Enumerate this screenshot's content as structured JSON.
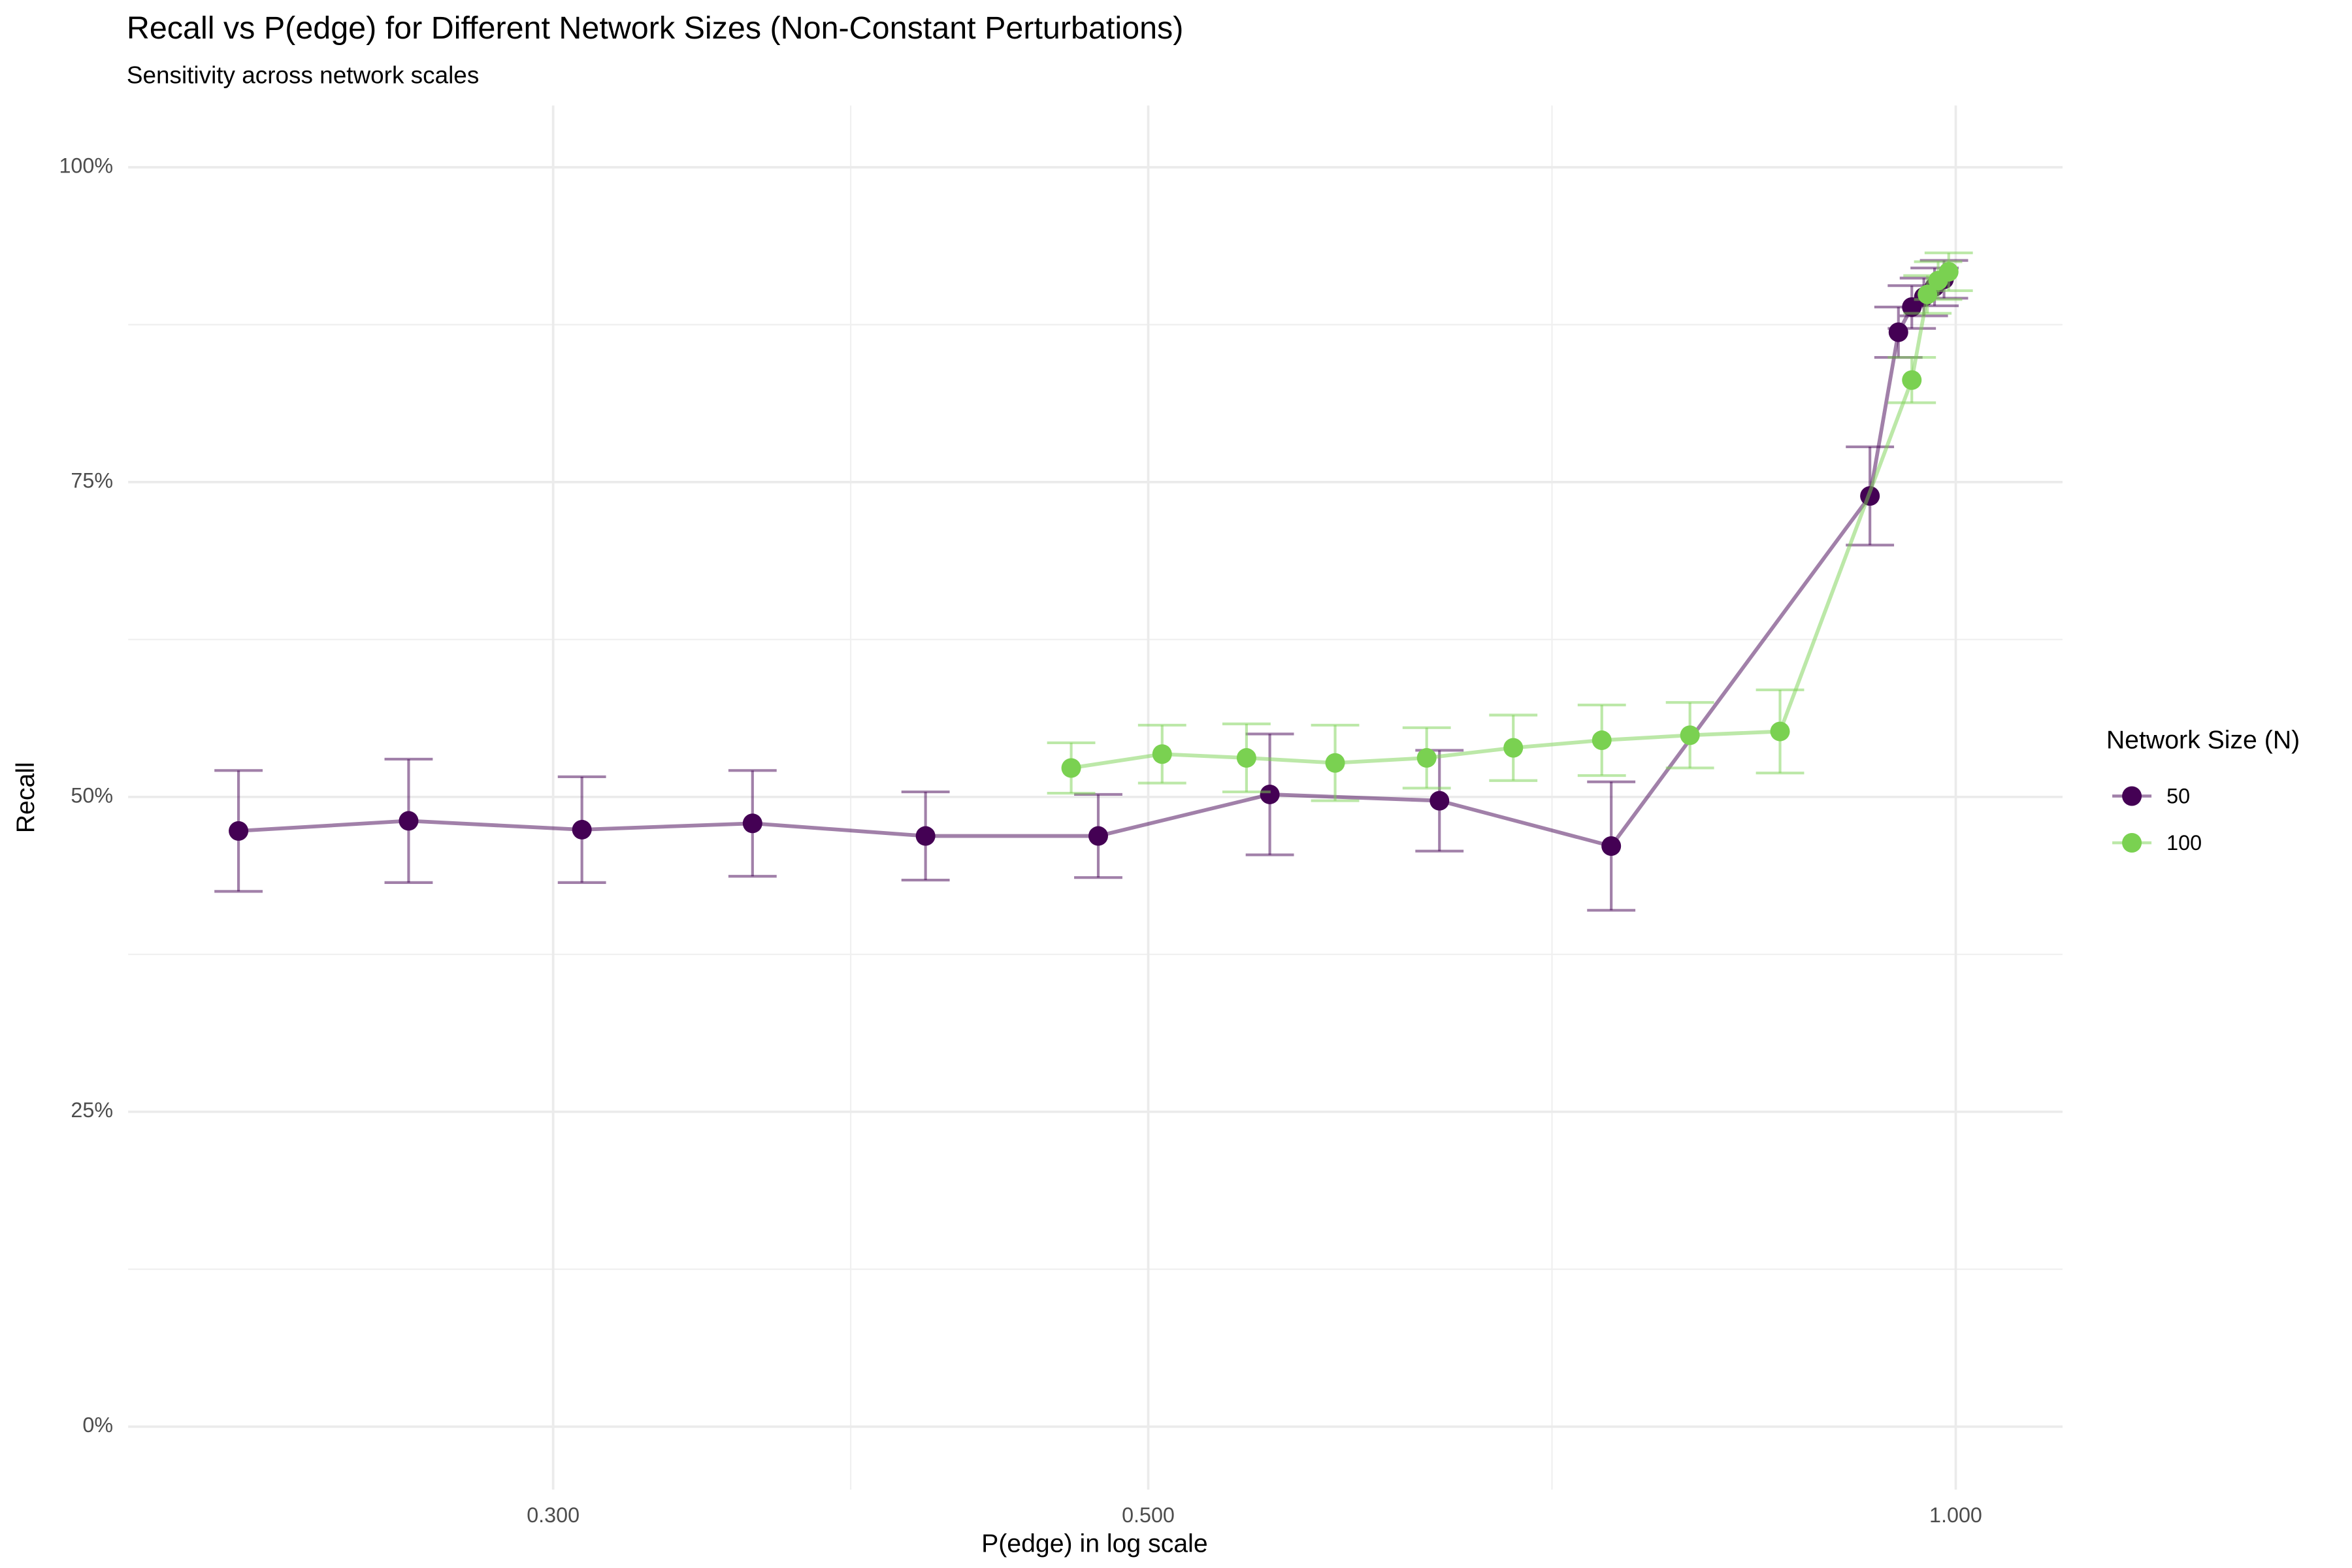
{
  "chart_data": {
    "type": "line",
    "title": "Recall vs P(edge) for Different Network Sizes (Non-Constant Perturbations)",
    "subtitle": "Sensitivity across network scales",
    "x_label": "P(edge) in log scale",
    "y_label": "Recall",
    "legend_title": "Network Size (N)",
    "legend_position": "right",
    "x_log": true,
    "grid": true,
    "minor_grid": true,
    "xlim": [
      0.2083,
      1.096
    ],
    "ylim": [
      -0.05,
      1.049
    ],
    "xticks": [
      {
        "value": 0.3,
        "label": "0.300"
      },
      {
        "value": 0.5,
        "label": "0.500"
      },
      {
        "value": 1,
        "label": "1.000"
      }
    ],
    "yticks": [
      {
        "value": 0,
        "label": "0%"
      },
      {
        "value": 0.25,
        "label": "25%"
      },
      {
        "value": 0.5,
        "label": "50%"
      },
      {
        "value": 0.75,
        "label": "75%"
      },
      {
        "value": 1,
        "label": "100%"
      }
    ],
    "series": [
      {
        "name": "50",
        "color": "#440154",
        "x": [
          0.229,
          0.265,
          0.3075,
          0.356,
          0.413,
          0.479,
          0.555,
          0.642,
          0.744,
          0.929,
          0.952,
          0.963,
          0.973,
          0.982,
          0.99
        ],
        "values": [
          0.473,
          0.481,
          0.474,
          0.479,
          0.469,
          0.469,
          0.502,
          0.497,
          0.461,
          0.739,
          0.869,
          0.889,
          0.897,
          0.905,
          0.911
        ],
        "errors": [
          0.048,
          0.049,
          0.042,
          0.042,
          0.035,
          0.033,
          0.048,
          0.04,
          0.051,
          0.039,
          0.02,
          0.017,
          0.015,
          0.015,
          0.015
        ]
      },
      {
        "name": "100",
        "color": "#7AD151",
        "x": [
          0.468,
          0.506,
          0.544,
          0.587,
          0.635,
          0.684,
          0.738,
          0.796,
          0.86,
          0.963,
          0.976,
          0.985,
          0.994
        ],
        "values": [
          0.523,
          0.534,
          0.531,
          0.527,
          0.531,
          0.539,
          0.545,
          0.549,
          0.552,
          0.831,
          0.899,
          0.91,
          0.917
        ],
        "errors": [
          0.02,
          0.023,
          0.027,
          0.03,
          0.024,
          0.026,
          0.028,
          0.026,
          0.033,
          0.018,
          0.015,
          0.015,
          0.015
        ]
      }
    ]
  }
}
